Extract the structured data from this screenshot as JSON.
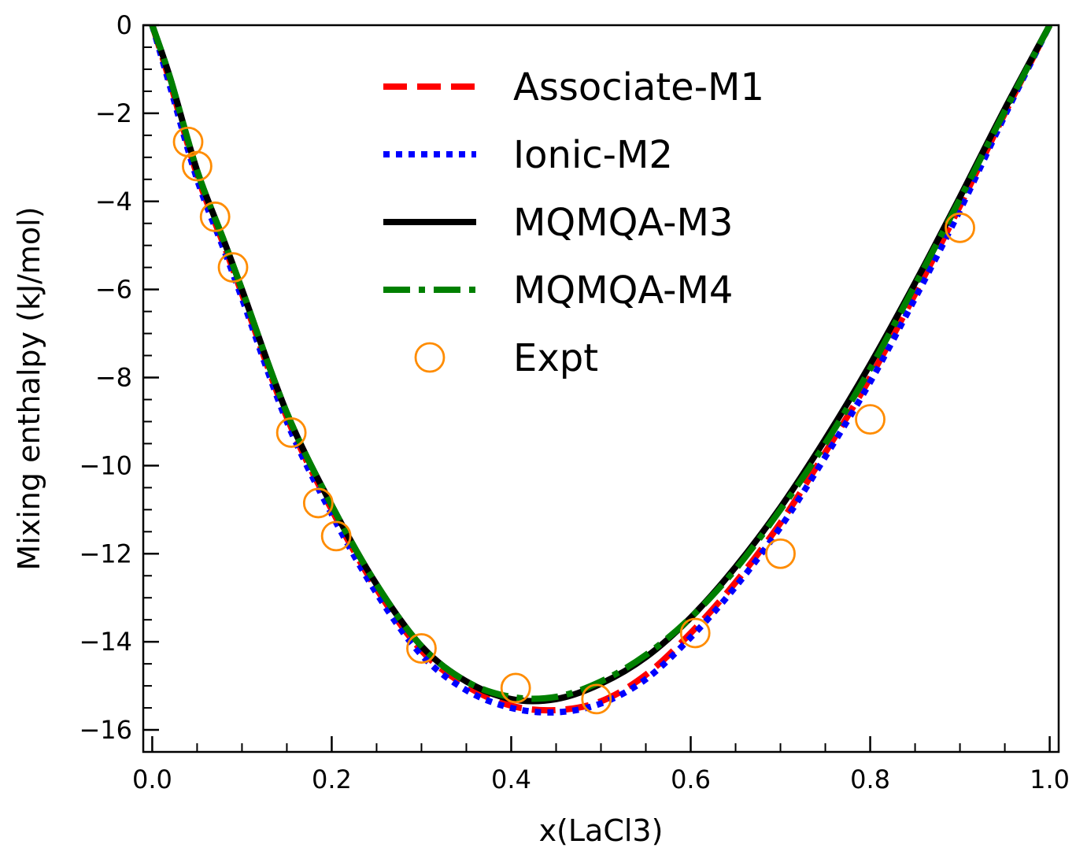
{
  "chart_data": {
    "type": "line",
    "xlabel": "x(LaCl3)",
    "ylabel": "Mixing enthalpy (kJ/mol)",
    "xlim": [
      -0.01,
      1.01
    ],
    "ylim": [
      -16.5,
      0
    ],
    "x_ticks": [
      0.0,
      0.2,
      0.4,
      0.6,
      0.8,
      1.0
    ],
    "x_tick_labels": [
      "0.0",
      "0.2",
      "0.4",
      "0.6",
      "0.8",
      "1.0"
    ],
    "y_ticks": [
      0,
      -2,
      -4,
      -6,
      -8,
      -10,
      -12,
      -14,
      -16
    ],
    "y_tick_labels": [
      "0",
      "−2",
      "−4",
      "−6",
      "−8",
      "−10",
      "−12",
      "−14",
      "−16"
    ],
    "grid": false,
    "legend_position": "top-center",
    "series": [
      {
        "name": "Associate-M1",
        "style": "dashed",
        "color": "#ff0000",
        "x": [
          0.0,
          0.02,
          0.05,
          0.08,
          0.1,
          0.15,
          0.2,
          0.25,
          0.3,
          0.35,
          0.4,
          0.45,
          0.5,
          0.55,
          0.6,
          0.65,
          0.7,
          0.75,
          0.8,
          0.85,
          0.9,
          0.95,
          1.0
        ],
        "y": [
          0.0,
          -1.3,
          -3.4,
          -5.0,
          -6.1,
          -8.9,
          -11.0,
          -12.8,
          -14.2,
          -15.0,
          -15.45,
          -15.55,
          -15.35,
          -14.75,
          -13.8,
          -12.65,
          -11.3,
          -9.7,
          -8.0,
          -6.1,
          -4.1,
          -2.0,
          0.0
        ]
      },
      {
        "name": "Ionic-M2",
        "style": "dotted",
        "color": "#0000ff",
        "x": [
          0.0,
          0.02,
          0.05,
          0.08,
          0.1,
          0.15,
          0.2,
          0.25,
          0.3,
          0.35,
          0.4,
          0.45,
          0.5,
          0.55,
          0.6,
          0.65,
          0.7,
          0.75,
          0.8,
          0.85,
          0.9,
          0.95,
          1.0
        ],
        "y": [
          0.0,
          -1.4,
          -3.5,
          -5.1,
          -6.2,
          -9.0,
          -11.1,
          -12.9,
          -14.3,
          -15.1,
          -15.5,
          -15.6,
          -15.4,
          -14.85,
          -13.9,
          -12.75,
          -11.4,
          -9.8,
          -8.1,
          -6.2,
          -4.2,
          -2.05,
          0.0
        ]
      },
      {
        "name": "MQMQA-M3",
        "style": "solid",
        "color": "#000000",
        "x": [
          0.0,
          0.02,
          0.05,
          0.08,
          0.1,
          0.15,
          0.2,
          0.25,
          0.3,
          0.35,
          0.4,
          0.45,
          0.5,
          0.55,
          0.6,
          0.65,
          0.7,
          0.75,
          0.8,
          0.85,
          0.9,
          0.95,
          1.0
        ],
        "y": [
          0.0,
          -1.2,
          -3.3,
          -4.9,
          -6.0,
          -8.8,
          -10.9,
          -12.7,
          -14.1,
          -14.9,
          -15.3,
          -15.3,
          -14.95,
          -14.35,
          -13.45,
          -12.3,
          -10.95,
          -9.4,
          -7.7,
          -5.85,
          -3.9,
          -1.9,
          0.0
        ]
      },
      {
        "name": "MQMQA-M4",
        "style": "dashdot",
        "color": "#008000",
        "x": [
          0.0,
          0.02,
          0.05,
          0.08,
          0.1,
          0.15,
          0.2,
          0.25,
          0.3,
          0.35,
          0.4,
          0.45,
          0.5,
          0.55,
          0.6,
          0.65,
          0.7,
          0.75,
          0.8,
          0.85,
          0.9,
          0.95,
          1.0
        ],
        "y": [
          0.0,
          -1.2,
          -3.3,
          -4.9,
          -6.0,
          -8.8,
          -10.9,
          -12.7,
          -14.1,
          -14.9,
          -15.25,
          -15.25,
          -14.9,
          -14.3,
          -13.45,
          -12.35,
          -11.0,
          -9.5,
          -7.8,
          -5.9,
          -3.95,
          -1.95,
          0.0
        ]
      },
      {
        "name": "Expt",
        "style": "markers",
        "color": "#ff8c00",
        "x": [
          0.04,
          0.05,
          0.07,
          0.09,
          0.155,
          0.185,
          0.205,
          0.3,
          0.405,
          0.495,
          0.605,
          0.7,
          0.8,
          0.9
        ],
        "y": [
          -2.65,
          -3.2,
          -4.35,
          -5.5,
          -9.25,
          -10.85,
          -11.6,
          -14.15,
          -15.05,
          -15.3,
          -13.8,
          -12.0,
          -8.95,
          -4.6
        ]
      }
    ]
  }
}
